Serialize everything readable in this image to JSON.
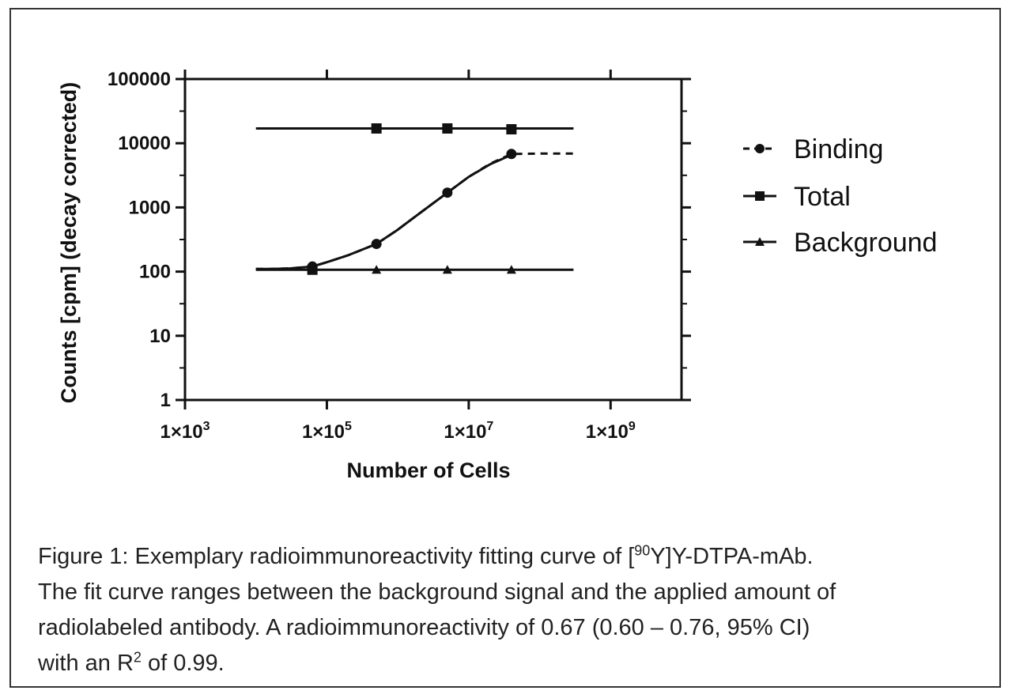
{
  "chart_data": {
    "type": "scatter",
    "x_scale": "log",
    "y_scale": "log",
    "xlabel": "Number of Cells",
    "ylabel": "Counts [cpm] (decay corrected)",
    "xlim": [
      1000,
      10000000000
    ],
    "ylim": [
      1,
      100000
    ],
    "x_ticks": [
      {
        "value": 1000,
        "mantissa": "1×10",
        "exp": "3"
      },
      {
        "value": 100000,
        "mantissa": "1×10",
        "exp": "5"
      },
      {
        "value": 10000000,
        "mantissa": "1×10",
        "exp": "7"
      },
      {
        "value": 1000000000,
        "mantissa": "1×10",
        "exp": "9"
      }
    ],
    "y_ticks": [
      {
        "value": 1,
        "label": "1"
      },
      {
        "value": 10,
        "label": "10"
      },
      {
        "value": 100,
        "label": "100"
      },
      {
        "value": 1000,
        "label": "1000"
      },
      {
        "value": 10000,
        "label": "10000"
      },
      {
        "value": 100000,
        "label": "100000"
      }
    ],
    "series": [
      {
        "name": "Binding",
        "marker": "circle",
        "line": "dashed",
        "x": [
          62500,
          500000,
          5000000,
          40000000
        ],
        "y": [
          120,
          270,
          1700,
          6800
        ],
        "fit_line": {
          "x": [
            10000,
            16000,
            30000,
            62500,
            100000,
            200000,
            500000,
            1000000,
            2000000,
            5000000,
            10000000,
            20000000,
            40000000,
            100000000,
            300000000
          ],
          "y": [
            110,
            110,
            112,
            120,
            140,
            180,
            270,
            450,
            800,
            1700,
            3000,
            4800,
            6800,
            6900,
            6900
          ]
        }
      },
      {
        "name": "Total",
        "marker": "square",
        "line": "solid",
        "x": [
          62500,
          500000,
          5000000,
          40000000
        ],
        "y": [
          107,
          17000,
          17000,
          16500
        ],
        "fit_line": {
          "x": [
            10000,
            300000000
          ],
          "y": [
            17000,
            17000
          ]
        }
      },
      {
        "name": "Background",
        "marker": "triangle",
        "line": "solid",
        "x": [
          500000,
          5000000,
          40000000
        ],
        "y": [
          107,
          107,
          107
        ],
        "fit_line": {
          "x": [
            10000,
            300000000
          ],
          "y": [
            107,
            107
          ]
        }
      }
    ],
    "fit_curve": {
      "x": [
        10000,
        16000,
        30000,
        62500,
        100000,
        200000,
        500000,
        1000000,
        2000000,
        5000000,
        10000000,
        20000000,
        40000000
      ],
      "y": [
        110,
        110,
        112,
        120,
        140,
        180,
        270,
        450,
        800,
        1700,
        3000,
        4700,
        6600
      ]
    },
    "legend_position": "right",
    "grid": false
  },
  "caption": {
    "line1_pre": "Figure 1: Exemplary radioimmunoreactivity fitting curve of [",
    "line1_sup": "90",
    "line1_post": "Y]Y-DTPA-mAb.",
    "line2": "The fit curve ranges between the background signal and the applied amount of",
    "line3": "radiolabeled antibody. A radioimmunoreactivity of 0.67 (0.60 – 0.76, 95% CI)",
    "line4_pre": "with an R",
    "line4_sup": "2",
    "line4_post": " of 0.99."
  }
}
